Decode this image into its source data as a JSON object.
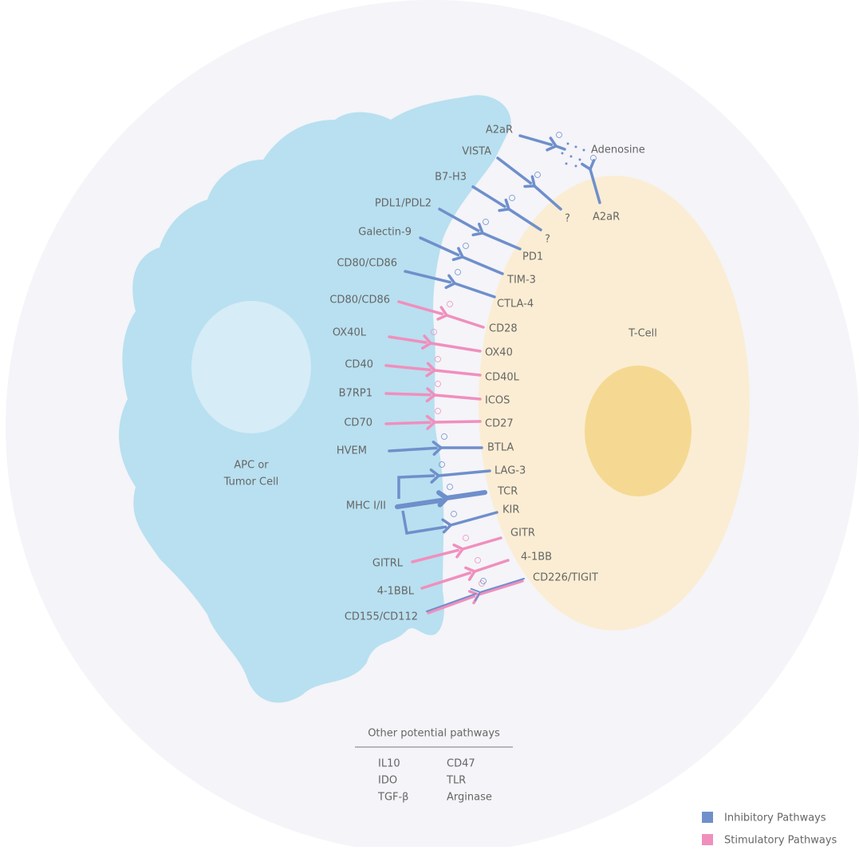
{
  "apc_label": [
    "APC or",
    "Tumor Cell"
  ],
  "t_cell_label": "T-Cell",
  "ligands": [
    "A2aR",
    "VISTA",
    "B7-H3",
    "PDL1/PDL2",
    "Galectin-9",
    "CD80/CD86",
    "CD80/CD86",
    "OX40L",
    "CD40",
    "B7RP1",
    "CD70",
    "HVEM",
    "MHC I/II",
    "GITRL",
    "4-1BBL",
    "CD155/CD112"
  ],
  "receptors": [
    "Adenosine",
    "A2aR",
    "?",
    "?",
    "PD1",
    "TIM-3",
    "CTLA-4",
    "CD28",
    "OX40",
    "CD40L",
    "ICOS",
    "CD27",
    "BTLA",
    "LAG-3",
    "TCR",
    "KIR",
    "GITR",
    "4-1BB",
    "CD226/TIGIT"
  ],
  "other_pathways": {
    "title": "Other potential pathways",
    "items": [
      "IL10",
      "IDO",
      "TGF-β",
      "CD47",
      "TLR",
      "Arginase"
    ]
  },
  "legend": [
    {
      "label": "Inhibitory Pathways",
      "color": "#6f8fcb"
    },
    {
      "label": "Stimulatory Pathways",
      "color": "#f08fbd"
    }
  ]
}
